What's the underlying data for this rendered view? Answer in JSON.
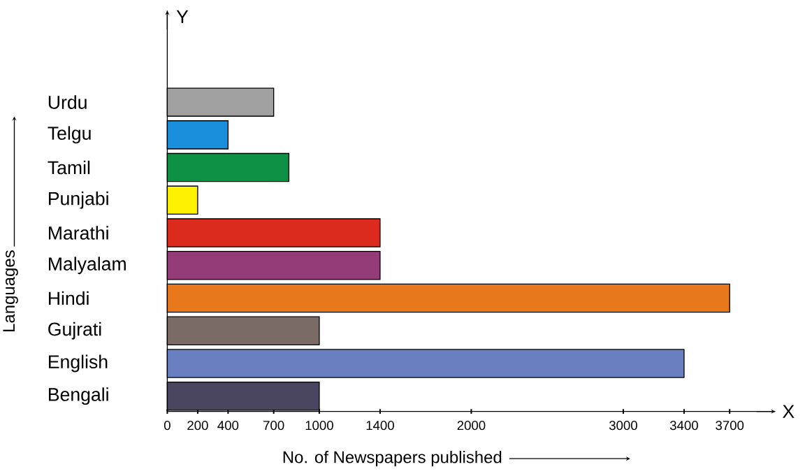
{
  "chart_data": {
    "type": "bar",
    "orientation": "horizontal",
    "categories": [
      "Urdu",
      "Telgu",
      "Tamil",
      "Punjabi",
      "Marathi",
      "Malyalam",
      "Hindi",
      "Gujrati",
      "English",
      "Bengali"
    ],
    "values": [
      700,
      400,
      800,
      200,
      1400,
      1400,
      3700,
      1000,
      3400,
      1000
    ],
    "colors": [
      "#a0a0a0",
      "#1a8fdc",
      "#0f9145",
      "#fff200",
      "#dc2a1e",
      "#933c77",
      "#e8781c",
      "#7a6b66",
      "#6a7fbf",
      "#4a4560"
    ],
    "xlabel": "No. of Newspapers published",
    "ylabel": "Languages",
    "xlim": [
      0,
      4000
    ],
    "xticks": [
      0,
      200,
      400,
      700,
      1000,
      1400,
      2000,
      3000,
      3400,
      3700
    ],
    "annotations": [
      "Y",
      "X"
    ]
  }
}
